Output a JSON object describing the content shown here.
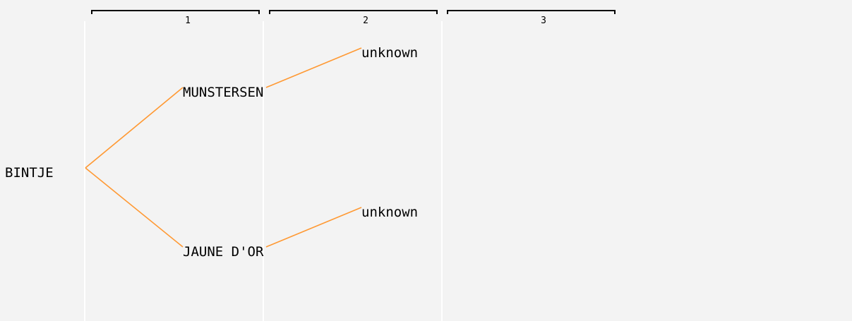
{
  "colors": {
    "background": "#f3f3f3",
    "edge": "#ff9933",
    "column_divider": "#ffffff",
    "text": "#000000"
  },
  "generations": [
    {
      "label": "1"
    },
    {
      "label": "2"
    },
    {
      "label": "3"
    }
  ],
  "tree": {
    "root": {
      "label": "BINTJE"
    },
    "gen1": [
      {
        "id": "m",
        "label": "MUNSTERSEN"
      },
      {
        "id": "j",
        "label": "JAUNE D'OR"
      }
    ],
    "gen2": [
      {
        "parent": "m",
        "label": "unknown"
      },
      {
        "parent": "j",
        "label": "unknown"
      }
    ]
  }
}
